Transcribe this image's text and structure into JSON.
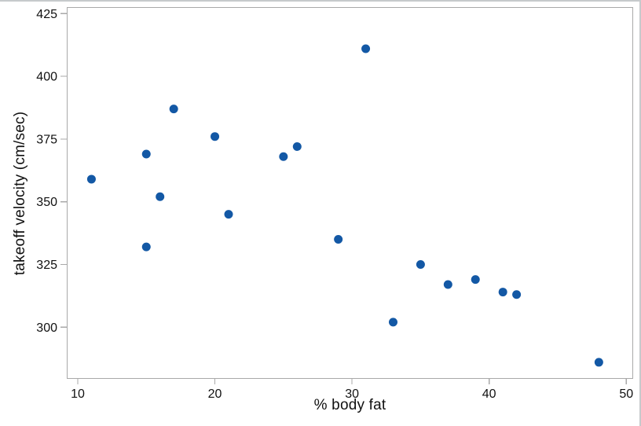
{
  "chart_data": {
    "type": "scatter",
    "title": "",
    "xlabel": "% body fat",
    "ylabel": "takeoff velocity (cm/sec)",
    "x_ticks": [
      10,
      20,
      30,
      40,
      50
    ],
    "y_ticks": [
      300,
      325,
      350,
      375,
      400,
      425
    ],
    "xlim": [
      9.2,
      50.5
    ],
    "ylim": [
      279.4,
      427.6
    ],
    "grid": false,
    "legend": "none",
    "marker_color": "#1358a5",
    "frame_color": "#a9a9a9",
    "tick_color": "#a9a9a9",
    "tick_label_color": "#111111",
    "points": [
      {
        "x": 11,
        "y": 359
      },
      {
        "x": 15,
        "y": 369
      },
      {
        "x": 15,
        "y": 332
      },
      {
        "x": 16,
        "y": 352
      },
      {
        "x": 17,
        "y": 387
      },
      {
        "x": 20,
        "y": 376
      },
      {
        "x": 21,
        "y": 345
      },
      {
        "x": 25,
        "y": 368
      },
      {
        "x": 26,
        "y": 372
      },
      {
        "x": 29,
        "y": 335
      },
      {
        "x": 31,
        "y": 411
      },
      {
        "x": 33,
        "y": 302
      },
      {
        "x": 35,
        "y": 325
      },
      {
        "x": 37,
        "y": 317
      },
      {
        "x": 39,
        "y": 319
      },
      {
        "x": 41,
        "y": 314
      },
      {
        "x": 42,
        "y": 313
      },
      {
        "x": 48,
        "y": 286
      }
    ]
  }
}
